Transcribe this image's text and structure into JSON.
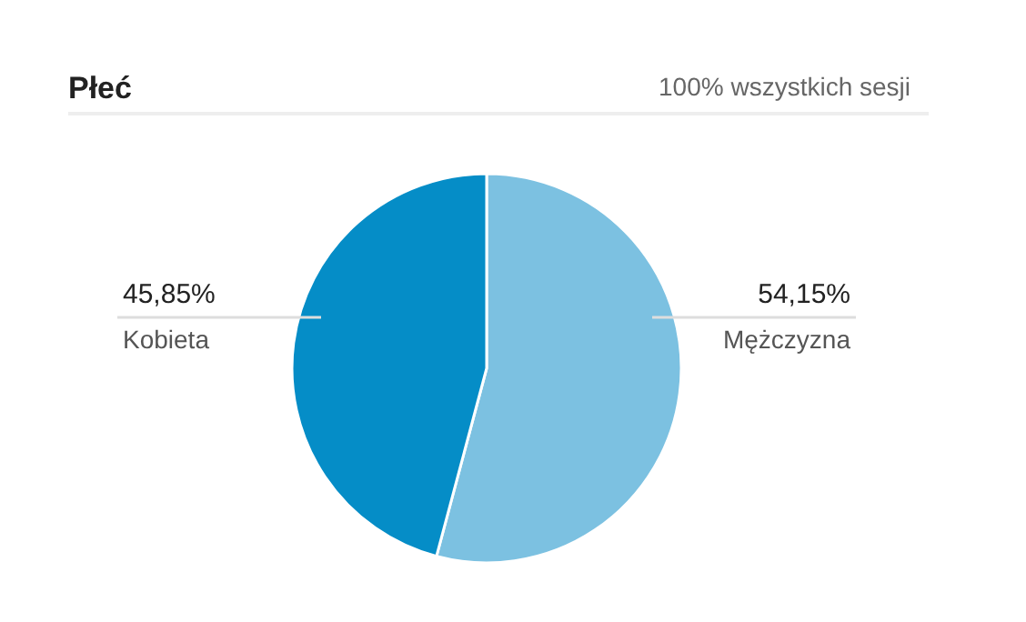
{
  "chart_data": {
    "type": "pie",
    "title": "Płeć",
    "subtitle": "100% wszystkich sesji",
    "categories": [
      "Mężczyzna",
      "Kobieta"
    ],
    "values": [
      54.15,
      45.85
    ],
    "colors": [
      "#7cc1e1",
      "#058dc7"
    ],
    "value_labels": [
      "54,15%",
      "45,85%"
    ]
  }
}
